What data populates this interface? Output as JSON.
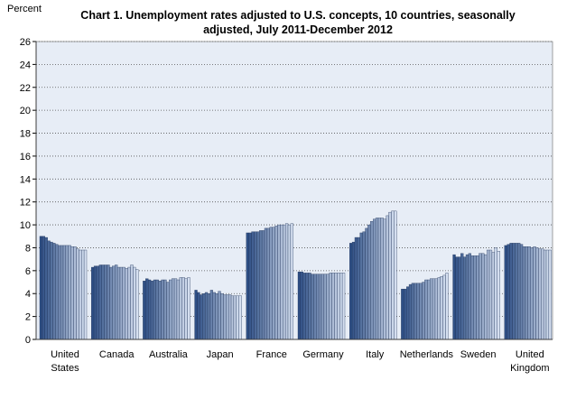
{
  "chart_data": {
    "type": "bar",
    "title_line1": "Chart 1. Unemployment rates adjusted to U.S. concepts, 10 countries, seasonally",
    "title_line2": "adjusted, July 2011-December 2012",
    "ylabel": "Percent",
    "ylim": [
      0,
      26
    ],
    "yticks": [
      "0",
      "2",
      "4",
      "6",
      "8",
      "10",
      "12",
      "14",
      "16",
      "18",
      "20",
      "22",
      "24",
      "26"
    ],
    "grid": true,
    "colors": {
      "dark": "#2e4f85",
      "light": "#d5dff0",
      "plot_bg": "#e7edf6",
      "grid": "#555555"
    },
    "periods": [
      "Jul 2011",
      "Aug 2011",
      "Sep 2011",
      "Oct 2011",
      "Nov 2011",
      "Dec 2011",
      "Jan 2012",
      "Feb 2012",
      "Mar 2012",
      "Apr 2012",
      "May 2012",
      "Jun 2012",
      "Jul 2012",
      "Aug 2012",
      "Sep 2012",
      "Oct 2012",
      "Nov 2012",
      "Dec 2012"
    ],
    "groups": [
      {
        "label": [
          "United",
          "States"
        ],
        "values": [
          9.0,
          9.0,
          8.9,
          8.6,
          8.5,
          8.4,
          8.3,
          8.2,
          8.2,
          8.2,
          8.2,
          8.2,
          8.1,
          8.1,
          7.9,
          7.8,
          7.8,
          7.8
        ]
      },
      {
        "label": [
          "Canada"
        ],
        "values": [
          6.3,
          6.4,
          6.4,
          6.5,
          6.5,
          6.5,
          6.5,
          6.3,
          6.4,
          6.5,
          6.3,
          6.3,
          6.3,
          6.2,
          6.3,
          6.5,
          6.3,
          6.1
        ]
      },
      {
        "label": [
          "Australia"
        ],
        "values": [
          5.1,
          5.3,
          5.2,
          5.1,
          5.2,
          5.2,
          5.1,
          5.2,
          5.2,
          5.0,
          5.2,
          5.3,
          5.3,
          5.2,
          5.4,
          5.4,
          5.3,
          5.4
        ]
      },
      {
        "label": [
          "Japan"
        ],
        "values": [
          4.3,
          4.1,
          3.9,
          4.0,
          4.1,
          4.0,
          4.3,
          4.1,
          4.0,
          4.2,
          4.0,
          3.9,
          3.9,
          3.9,
          3.8,
          3.8,
          3.8,
          3.8
        ]
      },
      {
        "label": [
          "France"
        ],
        "values": [
          9.3,
          9.3,
          9.4,
          9.4,
          9.4,
          9.5,
          9.5,
          9.7,
          9.7,
          9.8,
          9.8,
          9.9,
          10.0,
          10.0,
          10.0,
          10.1,
          10.0,
          10.1
        ]
      },
      {
        "label": [
          "Germany"
        ],
        "values": [
          5.9,
          5.9,
          5.8,
          5.8,
          5.8,
          5.7,
          5.7,
          5.7,
          5.7,
          5.7,
          5.7,
          5.7,
          5.8,
          5.8,
          5.8,
          5.8,
          5.8,
          5.8
        ]
      },
      {
        "label": [
          "Italy"
        ],
        "values": [
          8.4,
          8.5,
          8.9,
          8.9,
          9.3,
          9.4,
          9.7,
          10.0,
          10.3,
          10.5,
          10.6,
          10.6,
          10.6,
          10.5,
          10.8,
          11.1,
          11.2,
          11.2
        ]
      },
      {
        "label": [
          "Netherlands"
        ],
        "values": [
          4.4,
          4.4,
          4.6,
          4.8,
          4.9,
          4.9,
          4.9,
          4.9,
          5.0,
          5.2,
          5.2,
          5.3,
          5.3,
          5.3,
          5.4,
          5.5,
          5.6,
          5.8
        ]
      },
      {
        "label": [
          "Sweden"
        ],
        "values": [
          7.4,
          7.2,
          7.2,
          7.5,
          7.2,
          7.4,
          7.5,
          7.3,
          7.3,
          7.3,
          7.5,
          7.5,
          7.4,
          7.8,
          7.8,
          7.6,
          8.0,
          7.7
        ]
      },
      {
        "label": [
          "United",
          "Kingdom"
        ],
        "values": [
          8.2,
          8.3,
          8.4,
          8.4,
          8.4,
          8.4,
          8.3,
          8.1,
          8.1,
          8.1,
          8.0,
          8.1,
          8.0,
          7.9,
          7.9,
          7.8,
          7.8,
          7.8
        ]
      }
    ]
  }
}
